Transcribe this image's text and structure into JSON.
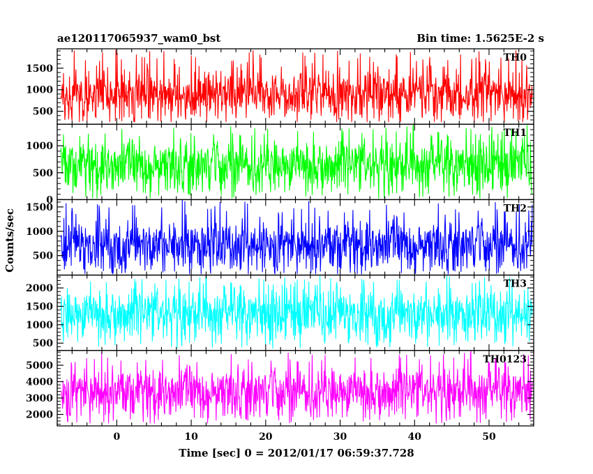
{
  "chart_data": {
    "type": "line",
    "title": "ae120117065937_wam0_bst",
    "subtitle": "Bin time: 1.5625E-2 s",
    "xlabel": "Time [sec] 0 = 2012/01/17 06:59:37.728",
    "ylabel": "Counts/sec",
    "xlim": [
      -8,
      56
    ],
    "xticks": [
      0,
      10,
      20,
      30,
      40,
      50
    ],
    "grid": false,
    "panels": [
      {
        "name": "TH0",
        "color": "#ff0000",
        "ylim": [
          200,
          1950
        ],
        "yticks": [
          500,
          1000,
          1500
        ],
        "summary": {
          "mean": 900,
          "min": 250,
          "max": 1950
        }
      },
      {
        "name": "TH1",
        "color": "#00ff00",
        "ylim": [
          0,
          1400
        ],
        "yticks": [
          0,
          500,
          1000
        ],
        "summary": {
          "mean": 640,
          "min": 20,
          "max": 1400
        }
      },
      {
        "name": "TH2",
        "color": "#0000ff",
        "ylim": [
          100,
          1650
        ],
        "yticks": [
          500,
          1000,
          1500
        ],
        "summary": {
          "mean": 730,
          "min": 120,
          "max": 1650
        }
      },
      {
        "name": "TH3",
        "color": "#00ffff",
        "ylim": [
          300,
          2350
        ],
        "yticks": [
          500,
          1000,
          1500,
          2000
        ],
        "summary": {
          "mean": 1300,
          "min": 350,
          "max": 2350
        }
      },
      {
        "name": "TH0123",
        "color": "#ff00ff",
        "ylim": [
          1300,
          5900
        ],
        "yticks": [
          2000,
          3000,
          4000,
          5000
        ],
        "summary": {
          "mean": 3400,
          "min": 1450,
          "max": 5900
        }
      }
    ]
  }
}
